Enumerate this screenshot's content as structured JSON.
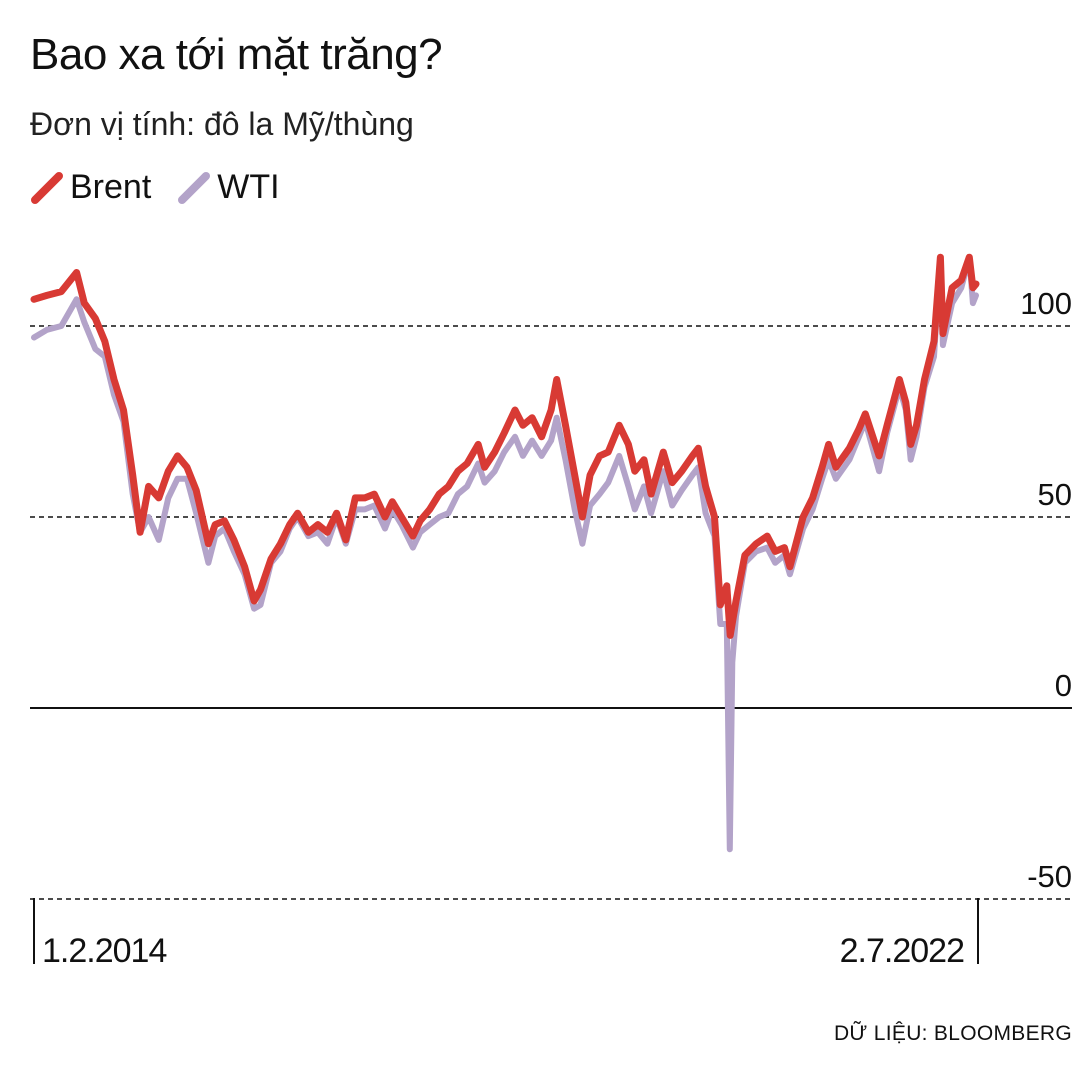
{
  "title": "Bao xa tới mặt trăng?",
  "subtitle": "Đơn vị tính: đô la Mỹ/thùng",
  "source": "DỮ LIỆU: BLOOMBERG",
  "chart_data": {
    "type": "line",
    "title": "Bao xa tới mặt trăng?",
    "ylabel": "Đơn vị tính: đô la Mỹ/thùng",
    "ylim": [
      -50,
      110
    ],
    "yticks": [
      100,
      50,
      0,
      -50
    ],
    "grid": true,
    "legend_position": "top-left",
    "x_labels": [
      "1.2.2014",
      "2.7.2022"
    ],
    "series": [
      {
        "name": "Brent",
        "color": "#d83a34",
        "points": [
          [
            "2014-02-01",
            107
          ],
          [
            "2014-03-15",
            108
          ],
          [
            "2014-05-01",
            109
          ],
          [
            "2014-06-20",
            114
          ],
          [
            "2014-07-15",
            106
          ],
          [
            "2014-08-20",
            102
          ],
          [
            "2014-09-20",
            96
          ],
          [
            "2014-10-20",
            86
          ],
          [
            "2014-11-20",
            78
          ],
          [
            "2014-12-20",
            61
          ],
          [
            "2015-01-13",
            46
          ],
          [
            "2015-02-10",
            58
          ],
          [
            "2015-03-15",
            55
          ],
          [
            "2015-04-15",
            62
          ],
          [
            "2015-05-15",
            66
          ],
          [
            "2015-06-15",
            63
          ],
          [
            "2015-07-15",
            57
          ],
          [
            "2015-08-24",
            43
          ],
          [
            "2015-09-15",
            48
          ],
          [
            "2015-10-15",
            49
          ],
          [
            "2015-11-15",
            44
          ],
          [
            "2015-12-20",
            37
          ],
          [
            "2016-01-20",
            28
          ],
          [
            "2016-02-10",
            31
          ],
          [
            "2016-03-15",
            39
          ],
          [
            "2016-04-15",
            43
          ],
          [
            "2016-05-15",
            48
          ],
          [
            "2016-06-10",
            51
          ],
          [
            "2016-07-15",
            46
          ],
          [
            "2016-08-15",
            48
          ],
          [
            "2016-09-15",
            46
          ],
          [
            "2016-10-15",
            51
          ],
          [
            "2016-11-14",
            44
          ],
          [
            "2016-12-15",
            55
          ],
          [
            "2017-01-15",
            55
          ],
          [
            "2017-02-15",
            56
          ],
          [
            "2017-03-22",
            50
          ],
          [
            "2017-04-15",
            54
          ],
          [
            "2017-05-15",
            50
          ],
          [
            "2017-06-21",
            45
          ],
          [
            "2017-07-15",
            49
          ],
          [
            "2017-08-15",
            52
          ],
          [
            "2017-09-15",
            56
          ],
          [
            "2017-10-15",
            58
          ],
          [
            "2017-11-15",
            62
          ],
          [
            "2017-12-15",
            64
          ],
          [
            "2018-01-20",
            69
          ],
          [
            "2018-02-10",
            63
          ],
          [
            "2018-03-15",
            67
          ],
          [
            "2018-04-15",
            72
          ],
          [
            "2018-05-20",
            78
          ],
          [
            "2018-06-15",
            74
          ],
          [
            "2018-07-15",
            76
          ],
          [
            "2018-08-15",
            71
          ],
          [
            "2018-09-15",
            78
          ],
          [
            "2018-10-03",
            86
          ],
          [
            "2018-11-01",
            74
          ],
          [
            "2018-12-01",
            61
          ],
          [
            "2018-12-26",
            50
          ],
          [
            "2019-01-20",
            61
          ],
          [
            "2019-02-20",
            66
          ],
          [
            "2019-03-20",
            67
          ],
          [
            "2019-04-25",
            74
          ],
          [
            "2019-05-25",
            69
          ],
          [
            "2019-06-15",
            62
          ],
          [
            "2019-07-15",
            65
          ],
          [
            "2019-08-07",
            56
          ],
          [
            "2019-09-16",
            67
          ],
          [
            "2019-10-15",
            59
          ],
          [
            "2019-11-15",
            62
          ],
          [
            "2019-12-20",
            66
          ],
          [
            "2020-01-08",
            68
          ],
          [
            "2020-02-01",
            58
          ],
          [
            "2020-03-01",
            50
          ],
          [
            "2020-03-20",
            27
          ],
          [
            "2020-04-10",
            32
          ],
          [
            "2020-04-21",
            19
          ],
          [
            "2020-05-10",
            28
          ],
          [
            "2020-06-08",
            40
          ],
          [
            "2020-07-15",
            43
          ],
          [
            "2020-08-20",
            45
          ],
          [
            "2020-09-15",
            41
          ],
          [
            "2020-10-15",
            42
          ],
          [
            "2020-11-02",
            37
          ],
          [
            "2020-12-15",
            50
          ],
          [
            "2021-01-15",
            55
          ],
          [
            "2021-02-15",
            63
          ],
          [
            "2021-03-08",
            69
          ],
          [
            "2021-04-01",
            63
          ],
          [
            "2021-05-15",
            68
          ],
          [
            "2021-06-15",
            73
          ],
          [
            "2021-07-06",
            77
          ],
          [
            "2021-08-20",
            66
          ],
          [
            "2021-09-15",
            74
          ],
          [
            "2021-10-25",
            86
          ],
          [
            "2021-11-15",
            80
          ],
          [
            "2021-12-01",
            69
          ],
          [
            "2021-12-20",
            74
          ],
          [
            "2022-01-15",
            86
          ],
          [
            "2022-02-15",
            96
          ],
          [
            "2022-03-08",
            128
          ],
          [
            "2022-03-16",
            98
          ],
          [
            "2022-04-15",
            110
          ],
          [
            "2022-05-15",
            112
          ],
          [
            "2022-06-10",
            123
          ],
          [
            "2022-06-22",
            110
          ],
          [
            "2022-07-02",
            111
          ]
        ]
      },
      {
        "name": "WTI",
        "color": "#b3a3c9",
        "points": [
          [
            "2014-02-01",
            97
          ],
          [
            "2014-03-15",
            99
          ],
          [
            "2014-05-01",
            100
          ],
          [
            "2014-06-20",
            107
          ],
          [
            "2014-07-15",
            101
          ],
          [
            "2014-08-20",
            94
          ],
          [
            "2014-09-20",
            92
          ],
          [
            "2014-10-20",
            82
          ],
          [
            "2014-11-20",
            75
          ],
          [
            "2014-12-20",
            56
          ],
          [
            "2015-01-13",
            46
          ],
          [
            "2015-02-10",
            50
          ],
          [
            "2015-03-15",
            44
          ],
          [
            "2015-04-15",
            55
          ],
          [
            "2015-05-15",
            60
          ],
          [
            "2015-06-15",
            60
          ],
          [
            "2015-07-15",
            51
          ],
          [
            "2015-08-24",
            38
          ],
          [
            "2015-09-15",
            45
          ],
          [
            "2015-10-15",
            47
          ],
          [
            "2015-11-15",
            41
          ],
          [
            "2015-12-20",
            35
          ],
          [
            "2016-01-20",
            26
          ],
          [
            "2016-02-10",
            27
          ],
          [
            "2016-03-15",
            38
          ],
          [
            "2016-04-15",
            41
          ],
          [
            "2016-05-15",
            47
          ],
          [
            "2016-06-10",
            50
          ],
          [
            "2016-07-15",
            45
          ],
          [
            "2016-08-15",
            46
          ],
          [
            "2016-09-15",
            43
          ],
          [
            "2016-10-15",
            50
          ],
          [
            "2016-11-14",
            43
          ],
          [
            "2016-12-15",
            52
          ],
          [
            "2017-01-15",
            52
          ],
          [
            "2017-02-15",
            53
          ],
          [
            "2017-03-22",
            47
          ],
          [
            "2017-04-15",
            52
          ],
          [
            "2017-05-15",
            48
          ],
          [
            "2017-06-21",
            42
          ],
          [
            "2017-07-15",
            46
          ],
          [
            "2017-08-15",
            48
          ],
          [
            "2017-09-15",
            50
          ],
          [
            "2017-10-15",
            51
          ],
          [
            "2017-11-15",
            56
          ],
          [
            "2017-12-15",
            58
          ],
          [
            "2018-01-20",
            64
          ],
          [
            "2018-02-10",
            59
          ],
          [
            "2018-03-15",
            62
          ],
          [
            "2018-04-15",
            67
          ],
          [
            "2018-05-20",
            71
          ],
          [
            "2018-06-15",
            66
          ],
          [
            "2018-07-15",
            70
          ],
          [
            "2018-08-15",
            66
          ],
          [
            "2018-09-15",
            70
          ],
          [
            "2018-10-03",
            76
          ],
          [
            "2018-11-01",
            65
          ],
          [
            "2018-12-01",
            52
          ],
          [
            "2018-12-26",
            43
          ],
          [
            "2019-01-20",
            53
          ],
          [
            "2019-02-20",
            56
          ],
          [
            "2019-03-20",
            59
          ],
          [
            "2019-04-25",
            66
          ],
          [
            "2019-05-25",
            58
          ],
          [
            "2019-06-15",
            52
          ],
          [
            "2019-07-15",
            58
          ],
          [
            "2019-08-07",
            51
          ],
          [
            "2019-09-16",
            62
          ],
          [
            "2019-10-15",
            53
          ],
          [
            "2019-11-15",
            57
          ],
          [
            "2019-12-20",
            61
          ],
          [
            "2020-01-08",
            63
          ],
          [
            "2020-02-01",
            51
          ],
          [
            "2020-03-01",
            45
          ],
          [
            "2020-03-20",
            22
          ],
          [
            "2020-04-10",
            22
          ],
          [
            "2020-04-20",
            -37
          ],
          [
            "2020-04-28",
            12
          ],
          [
            "2020-05-10",
            24
          ],
          [
            "2020-06-08",
            38
          ],
          [
            "2020-07-15",
            41
          ],
          [
            "2020-08-20",
            42
          ],
          [
            "2020-09-15",
            38
          ],
          [
            "2020-10-15",
            40
          ],
          [
            "2020-11-02",
            35
          ],
          [
            "2020-12-15",
            47
          ],
          [
            "2021-01-15",
            52
          ],
          [
            "2021-02-15",
            60
          ],
          [
            "2021-03-08",
            65
          ],
          [
            "2021-04-01",
            60
          ],
          [
            "2021-05-15",
            65
          ],
          [
            "2021-06-15",
            71
          ],
          [
            "2021-07-06",
            75
          ],
          [
            "2021-08-20",
            62
          ],
          [
            "2021-09-15",
            72
          ],
          [
            "2021-10-25",
            84
          ],
          [
            "2021-11-15",
            78
          ],
          [
            "2021-12-01",
            65
          ],
          [
            "2021-12-20",
            71
          ],
          [
            "2022-01-15",
            84
          ],
          [
            "2022-02-15",
            92
          ],
          [
            "2022-03-08",
            123
          ],
          [
            "2022-03-16",
            95
          ],
          [
            "2022-04-15",
            106
          ],
          [
            "2022-05-15",
            110
          ],
          [
            "2022-06-10",
            120
          ],
          [
            "2022-06-22",
            106
          ],
          [
            "2022-07-02",
            108
          ]
        ]
      }
    ]
  }
}
